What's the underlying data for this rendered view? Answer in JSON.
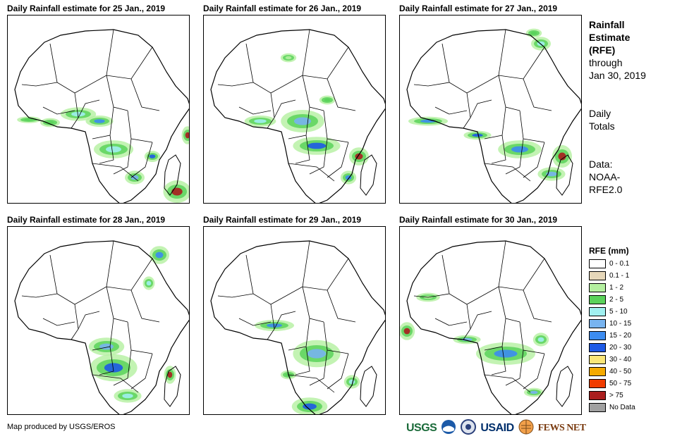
{
  "panels": [
    {
      "title": "Daily Rainfall estimate for 25 Jan., 2019"
    },
    {
      "title": "Daily Rainfall estimate for 26 Jan., 2019"
    },
    {
      "title": "Daily Rainfall estimate for 27 Jan., 2019"
    },
    {
      "title": "Daily Rainfall estimate for 28 Jan., 2019"
    },
    {
      "title": "Daily Rainfall estimate for 29 Jan., 2019"
    },
    {
      "title": "Daily Rainfall estimate for 30 Jan., 2019"
    }
  ],
  "side": {
    "title_lines": [
      "Rainfall",
      "Estimate",
      "(RFE)"
    ],
    "through_lines": [
      "through",
      "Jan 30, 2019"
    ],
    "totals_lines": [
      "Daily",
      "Totals"
    ],
    "data_lines": [
      "Data:",
      "NOAA-",
      "RFE2.0"
    ]
  },
  "legend": {
    "title": "RFE (mm)",
    "items": [
      {
        "label": "0 - 0.1",
        "color": "#ffffff"
      },
      {
        "label": "0.1 - 1",
        "color": "#e6d7b9"
      },
      {
        "label": "1 - 2",
        "color": "#b4f0a0"
      },
      {
        "label": "2 - 5",
        "color": "#5ad25a"
      },
      {
        "label": "5 - 10",
        "color": "#a0f0f0"
      },
      {
        "label": "10 - 15",
        "color": "#78b4f0"
      },
      {
        "label": "15 - 20",
        "color": "#3c8cf0"
      },
      {
        "label": "20 - 30",
        "color": "#1e5ae6"
      },
      {
        "label": "30 - 40",
        "color": "#fae678"
      },
      {
        "label": "40 - 50",
        "color": "#f5aa00"
      },
      {
        "label": "50 - 75",
        "color": "#f03c00"
      },
      {
        "label": "> 75",
        "color": "#aa1e1e"
      },
      {
        "label": "No Data",
        "color": "#a0a0a0"
      }
    ]
  },
  "credit": "Map produced by USGS/EROS",
  "logos": {
    "usgs": "USGS",
    "usaid": "USAID",
    "fews": "FEWS NET"
  }
}
